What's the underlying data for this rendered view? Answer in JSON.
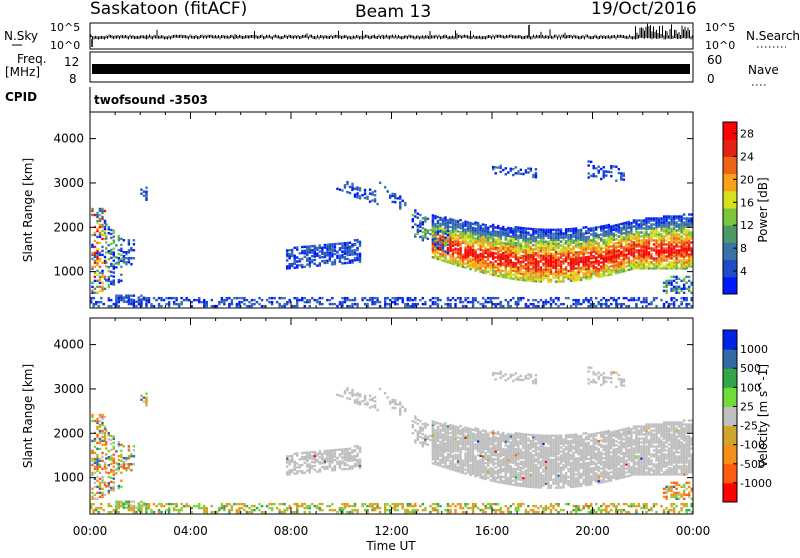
{
  "header": {
    "station": "Saskatoon (fitACF)",
    "beam": "Beam 13",
    "date": "19/Oct/2016"
  },
  "noise_panel": {
    "left_label": "N.Sky",
    "left_ticks": [
      "10^5",
      "10^0"
    ],
    "right_label": "N.Search",
    "right_ticks": [
      "10^5",
      "10^0"
    ]
  },
  "freq_panel": {
    "left_label_line1": "Freq.",
    "left_label_line2": "[MHz]",
    "left_ticks": [
      "12",
      "8"
    ],
    "right_label": "Nave",
    "right_ticks": [
      "60",
      "0"
    ]
  },
  "cpid_panel": {
    "label": "CPID",
    "value": "twofsound -3503"
  },
  "time_axis": {
    "label": "Time UT",
    "ticks": [
      "00:00",
      "04:00",
      "08:00",
      "12:00",
      "16:00",
      "20:00",
      "00:00"
    ]
  },
  "chart_data": [
    {
      "type": "heatmap",
      "title": "",
      "xlabel": "Time UT",
      "ylabel": "Slant Range [km]",
      "xlim": [
        0,
        24
      ],
      "ylim": [
        180,
        4600
      ],
      "yticks": [
        "1000",
        "2000",
        "3000",
        "4000"
      ],
      "colorbar": {
        "label": "Power [dB]",
        "ticks": [
          "4",
          "8",
          "12",
          "16",
          "20",
          "24",
          "28"
        ],
        "range": [
          0,
          30
        ]
      }
    },
    {
      "type": "heatmap",
      "title": "",
      "xlabel": "Time UT",
      "ylabel": "Slant Range [km]",
      "xlim": [
        0,
        24
      ],
      "ylim": [
        180,
        4600
      ],
      "yticks": [
        "1000",
        "2000",
        "3000",
        "4000"
      ],
      "colorbar": {
        "label": "Velocity [m s^-1]",
        "ticks": [
          "1000",
          "500",
          "100",
          "25",
          "-25",
          "-100",
          "-500",
          "-1000"
        ],
        "range": [
          -2000,
          2000
        ]
      }
    }
  ],
  "colors": {
    "power_scale": [
      "#0019ff",
      "#1f4cc8",
      "#3b73a8",
      "#4c9a67",
      "#7cc43b",
      "#d8df1b",
      "#f7a21c",
      "#f06317",
      "#e52116",
      "#ff0000"
    ],
    "velocity_scale": [
      "#0024e5",
      "#326aa6",
      "#33a64a",
      "#6fdc3a",
      "#bfbfbf",
      "#d0a52c",
      "#f48e15",
      "#ff5a12",
      "#ff0000"
    ]
  }
}
